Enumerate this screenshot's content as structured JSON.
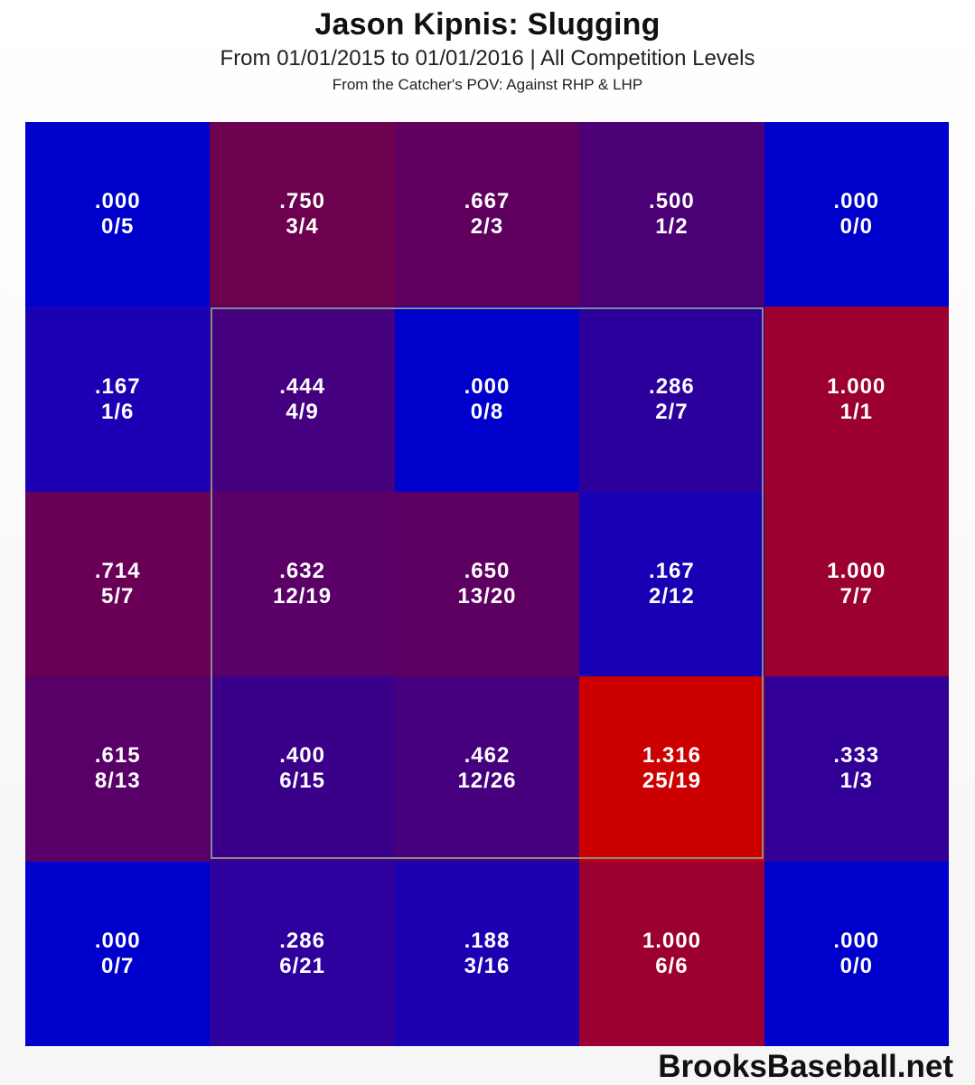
{
  "header": {
    "title": "Jason Kipnis: Slugging",
    "subtitle": "From 01/01/2015 to 01/01/2016 | All Competition Levels",
    "subtitle2": "From the Catcher's POV:   Against RHP & LHP"
  },
  "footer": {
    "brand": "BrooksBaseball.net"
  },
  "chart_data": {
    "type": "heatmap",
    "title": "Jason Kipnis: Slugging",
    "subtitle": "From 01/01/2015 to 01/01/2016 | All Competition Levels",
    "note": "From the Catcher's POV: Against RHP & LHP",
    "rows": 5,
    "cols": 5,
    "strike_zone": "inner 3x3 (rows 2-4, cols 2-4)",
    "color_scale": {
      "low": "#0000cc",
      "high": "#cc0000"
    },
    "cells": [
      [
        {
          "value": ".000",
          "ratio": "0/5",
          "color": "#0000cc"
        },
        {
          "value": ".750",
          "ratio": "3/4",
          "color": "#6e0050"
        },
        {
          "value": ".667",
          "ratio": "2/3",
          "color": "#5f005f"
        },
        {
          "value": ".500",
          "ratio": "1/2",
          "color": "#4b0076"
        },
        {
          "value": ".000",
          "ratio": "0/0",
          "color": "#0000cc"
        }
      ],
      [
        {
          "value": ".167",
          "ratio": "1/6",
          "color": "#1c00b3"
        },
        {
          "value": ".444",
          "ratio": "4/9",
          "color": "#45007f"
        },
        {
          "value": ".000",
          "ratio": "0/8",
          "color": "#0000cc"
        },
        {
          "value": ".286",
          "ratio": "2/7",
          "color": "#2c009d"
        },
        {
          "value": "1.000",
          "ratio": "1/1",
          "color": "#9c0030"
        }
      ],
      [
        {
          "value": ".714",
          "ratio": "5/7",
          "color": "#6a0055"
        },
        {
          "value": ".632",
          "ratio": "12/19",
          "color": "#5a0066"
        },
        {
          "value": ".650",
          "ratio": "13/20",
          "color": "#5d0062"
        },
        {
          "value": ".167",
          "ratio": "2/12",
          "color": "#1800b4"
        },
        {
          "value": "1.000",
          "ratio": "7/7",
          "color": "#9c0030"
        }
      ],
      [
        {
          "value": ".615",
          "ratio": "8/13",
          "color": "#590068"
        },
        {
          "value": ".400",
          "ratio": "6/15",
          "color": "#3a008a"
        },
        {
          "value": ".462",
          "ratio": "12/26",
          "color": "#46007e"
        },
        {
          "value": "1.316",
          "ratio": "25/19",
          "color": "#cc0000"
        },
        {
          "value": ".333",
          "ratio": "1/3",
          "color": "#320096"
        }
      ],
      [
        {
          "value": ".000",
          "ratio": "0/7",
          "color": "#0000cc"
        },
        {
          "value": ".286",
          "ratio": "6/21",
          "color": "#2e009e"
        },
        {
          "value": ".188",
          "ratio": "3/16",
          "color": "#1c00b2"
        },
        {
          "value": "1.000",
          "ratio": "6/6",
          "color": "#9c0030"
        },
        {
          "value": ".000",
          "ratio": "0/0",
          "color": "#0000cc"
        }
      ]
    ]
  }
}
